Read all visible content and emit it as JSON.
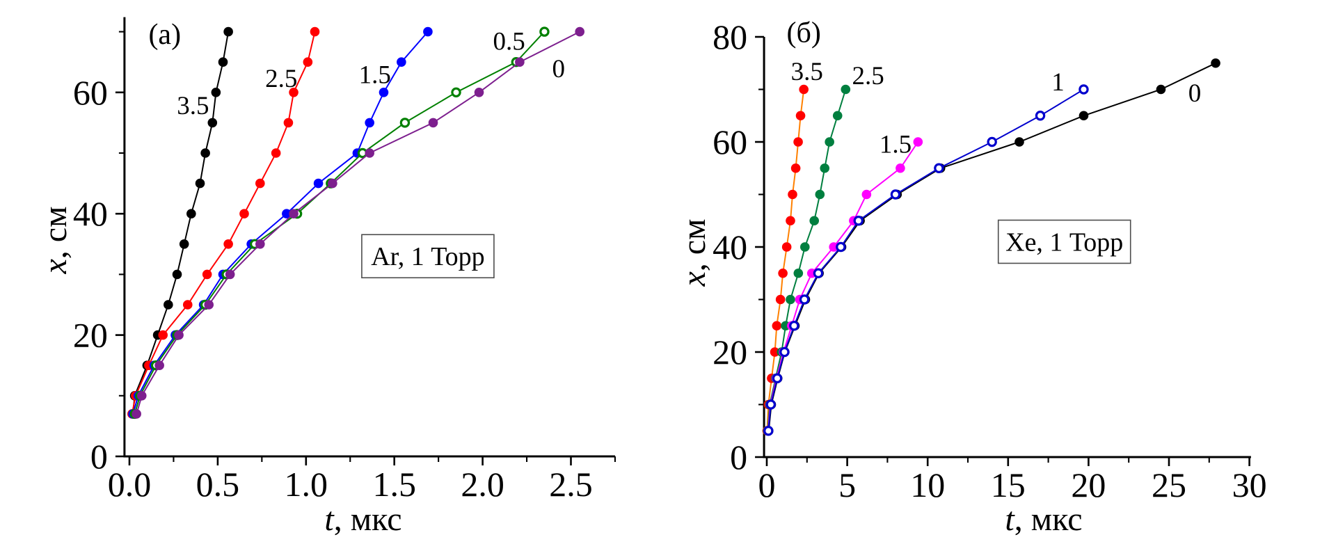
{
  "figure": {
    "background": "#ffffff",
    "description_labels": {
      "panel_a": "(a)",
      "panel_b": "(б)"
    }
  },
  "chart_data": [
    {
      "id": "a",
      "type": "scatter",
      "panel_label": "(a)",
      "annotation": "Ar, 1 Торр",
      "xlabel": {
        "italic": "t",
        "rest": ", мкс"
      },
      "ylabel": {
        "italic": "x",
        "rest": ", см"
      },
      "xlim": [
        -0.028,
        2.75
      ],
      "ylim": [
        0,
        72.4
      ],
      "grid": false,
      "x_major_ticks": {
        "values": [
          0,
          0.5,
          1.0,
          1.5,
          2.0,
          2.5
        ],
        "labels": [
          "0.0",
          "0.5",
          "1.0",
          "1.5",
          "2.0",
          "2.5"
        ]
      },
      "x_minor_ticks": [
        0.25,
        0.75,
        1.25,
        1.75,
        2.25,
        2.75
      ],
      "y_major_ticks": {
        "values": [
          0,
          20,
          40,
          60
        ],
        "labels": [
          "0",
          "20",
          "40",
          "60"
        ]
      },
      "y_minor_ticks": [
        10,
        30,
        50,
        70
      ],
      "panel_label_anchor": [
        0.2,
        69.7
      ],
      "annotation_anchor": [
        1.69,
        33.0
      ],
      "series": [
        {
          "name": "3.5",
          "label": "3.5",
          "marker": "filled",
          "marker_color": "#000000",
          "line_color": "#000000",
          "label_anchor": [
            0.36,
            57.9
          ],
          "points": [
            [
              0.02,
              7
            ],
            [
              0.03,
              10
            ],
            [
              0.1,
              15
            ],
            [
              0.16,
              20
            ],
            [
              0.22,
              25
            ],
            [
              0.27,
              30
            ],
            [
              0.31,
              35
            ],
            [
              0.35,
              40
            ],
            [
              0.4,
              45
            ],
            [
              0.43,
              50
            ],
            [
              0.47,
              55
            ],
            [
              0.49,
              60
            ],
            [
              0.53,
              65
            ],
            [
              0.56,
              70
            ]
          ]
        },
        {
          "name": "2.5",
          "label": "2.5",
          "marker": "filled",
          "marker_color": "#FF0000",
          "line_color": "#FF0000",
          "label_anchor": [
            0.86,
            62.4
          ],
          "points": [
            [
              0.015,
              7
            ],
            [
              0.035,
              10
            ],
            [
              0.11,
              15
            ],
            [
              0.19,
              20
            ],
            [
              0.33,
              25
            ],
            [
              0.44,
              30
            ],
            [
              0.56,
              35
            ],
            [
              0.65,
              40
            ],
            [
              0.74,
              45
            ],
            [
              0.83,
              50
            ],
            [
              0.9,
              55
            ],
            [
              0.93,
              60
            ],
            [
              1.01,
              65
            ],
            [
              1.05,
              70
            ]
          ]
        },
        {
          "name": "1.5",
          "label": "1.5",
          "marker": "filled",
          "marker_color": "#0000FF",
          "line_color": "#0000FF",
          "label_anchor": [
            1.39,
            63.0
          ],
          "points": [
            [
              0.02,
              7
            ],
            [
              0.05,
              10
            ],
            [
              0.14,
              15
            ],
            [
              0.26,
              20
            ],
            [
              0.42,
              25
            ],
            [
              0.53,
              30
            ],
            [
              0.69,
              35
            ],
            [
              0.89,
              40
            ],
            [
              1.07,
              45
            ],
            [
              1.29,
              50
            ],
            [
              1.36,
              55
            ],
            [
              1.44,
              60
            ],
            [
              1.54,
              65
            ],
            [
              1.69,
              70
            ]
          ]
        },
        {
          "name": "0.5",
          "label": "0.5",
          "marker": "open",
          "marker_color": "#008000",
          "line_color": "#008000",
          "label_anchor": [
            2.15,
            68.5
          ],
          "points": [
            [
              0.03,
              7
            ],
            [
              0.06,
              10
            ],
            [
              0.15,
              15
            ],
            [
              0.27,
              20
            ],
            [
              0.43,
              25
            ],
            [
              0.55,
              30
            ],
            [
              0.71,
              35
            ],
            [
              0.95,
              40
            ],
            [
              1.14,
              45
            ],
            [
              1.32,
              50
            ],
            [
              1.56,
              55
            ],
            [
              1.85,
              60
            ],
            [
              2.19,
              65
            ],
            [
              2.35,
              70
            ]
          ]
        },
        {
          "name": "0",
          "label": "0",
          "marker": "filled",
          "marker_color": "#7D1F8E",
          "line_color": "#7D1F8E",
          "label_anchor": [
            2.43,
            64.0
          ],
          "points": [
            [
              0.04,
              7
            ],
            [
              0.07,
              10
            ],
            [
              0.17,
              15
            ],
            [
              0.28,
              20
            ],
            [
              0.45,
              25
            ],
            [
              0.57,
              30
            ],
            [
              0.74,
              35
            ],
            [
              0.93,
              40
            ],
            [
              1.15,
              45
            ],
            [
              1.36,
              50
            ],
            [
              1.72,
              55
            ],
            [
              1.98,
              60
            ],
            [
              2.21,
              65
            ],
            [
              2.55,
              70
            ]
          ]
        }
      ]
    },
    {
      "id": "b",
      "type": "scatter",
      "panel_label": "(б)",
      "annotation": "Xe, 1 Торр",
      "xlabel": {
        "italic": "t",
        "rest": ", мкс"
      },
      "ylabel": {
        "italic": "x",
        "rest": ", см"
      },
      "xlim": [
        -0.17,
        30.1
      ],
      "ylim": [
        0,
        80
      ],
      "grid": false,
      "x_major_ticks": {
        "values": [
          0,
          5,
          10,
          15,
          20,
          25,
          30
        ],
        "labels": [
          "0",
          "5",
          "10",
          "15",
          "20",
          "25",
          "30"
        ]
      },
      "x_minor_ticks": [
        2.5,
        7.5,
        12.5,
        17.5,
        22.5,
        27.5
      ],
      "y_major_ticks": {
        "values": [
          0,
          20,
          40,
          60,
          80
        ],
        "labels": [
          "0",
          "20",
          "40",
          "60",
          "80"
        ]
      },
      "y_minor_ticks": [
        10,
        30,
        50,
        70
      ],
      "panel_label_anchor": [
        2.3,
        81.0
      ],
      "annotation_anchor": [
        18.5,
        41.0
      ],
      "series": [
        {
          "name": "3.5",
          "label": "3.5",
          "marker": "filled",
          "marker_color": "#FF0000",
          "line_color": "#FF8000",
          "label_anchor": [
            2.5,
            73.5
          ],
          "points": [
            [
              0.02,
              5
            ],
            [
              0.1,
              10
            ],
            [
              0.3,
              15
            ],
            [
              0.5,
              20
            ],
            [
              0.62,
              25
            ],
            [
              0.85,
              30
            ],
            [
              1.0,
              35
            ],
            [
              1.24,
              40
            ],
            [
              1.47,
              45
            ],
            [
              1.6,
              50
            ],
            [
              1.8,
              55
            ],
            [
              1.95,
              60
            ],
            [
              2.1,
              65
            ],
            [
              2.3,
              70
            ]
          ]
        },
        {
          "name": "2.5",
          "label": "2.5",
          "marker": "filled",
          "marker_color": "#007F3F",
          "line_color": "#007F3F",
          "label_anchor": [
            6.3,
            72.7
          ],
          "points": [
            [
              0.05,
              5
            ],
            [
              0.18,
              10
            ],
            [
              0.55,
              15
            ],
            [
              0.92,
              20
            ],
            [
              1.17,
              25
            ],
            [
              1.47,
              30
            ],
            [
              1.96,
              35
            ],
            [
              2.37,
              40
            ],
            [
              2.95,
              45
            ],
            [
              3.3,
              50
            ],
            [
              3.6,
              55
            ],
            [
              3.9,
              60
            ],
            [
              4.4,
              65
            ],
            [
              4.9,
              70
            ]
          ]
        },
        {
          "name": "1.5",
          "label": "1.5",
          "marker": "filled",
          "marker_color": "#FF00FF",
          "line_color": "#FF00FF",
          "label_anchor": [
            8.0,
            59.7
          ],
          "points": [
            [
              0.08,
              5
            ],
            [
              0.22,
              10
            ],
            [
              0.6,
              15
            ],
            [
              1.04,
              20
            ],
            [
              1.55,
              25
            ],
            [
              2.05,
              30
            ],
            [
              2.8,
              35
            ],
            [
              4.16,
              40
            ],
            [
              5.4,
              45
            ],
            [
              6.2,
              50
            ],
            [
              8.3,
              55
            ],
            [
              9.4,
              60
            ]
          ]
        },
        {
          "name": "0",
          "label": "0",
          "marker": "filled",
          "marker_color": "#000000",
          "line_color": "#000000",
          "label_anchor": [
            26.6,
            69.4
          ],
          "points": [
            [
              0.12,
              5
            ],
            [
              0.28,
              10
            ],
            [
              0.68,
              15
            ],
            [
              1.12,
              20
            ],
            [
              1.75,
              25
            ],
            [
              2.4,
              30
            ],
            [
              3.25,
              35
            ],
            [
              4.65,
              40
            ],
            [
              5.8,
              45
            ],
            [
              8.1,
              50
            ],
            [
              10.8,
              55
            ],
            [
              15.7,
              60
            ],
            [
              19.7,
              65
            ],
            [
              24.5,
              70
            ],
            [
              27.9,
              75
            ]
          ]
        },
        {
          "name": "1",
          "label": "1",
          "marker": "open",
          "marker_color": "#0000CD",
          "line_color": "#0000CD",
          "label_anchor": [
            18.1,
            71.5
          ],
          "points": [
            [
              0.1,
              5
            ],
            [
              0.25,
              10
            ],
            [
              0.65,
              15
            ],
            [
              1.1,
              20
            ],
            [
              1.7,
              25
            ],
            [
              2.34,
              30
            ],
            [
              3.2,
              35
            ],
            [
              4.6,
              40
            ],
            [
              5.7,
              45
            ],
            [
              8.0,
              50
            ],
            [
              10.7,
              55
            ],
            [
              14.0,
              60
            ],
            [
              17.0,
              65
            ],
            [
              19.7,
              70
            ]
          ]
        }
      ]
    }
  ]
}
